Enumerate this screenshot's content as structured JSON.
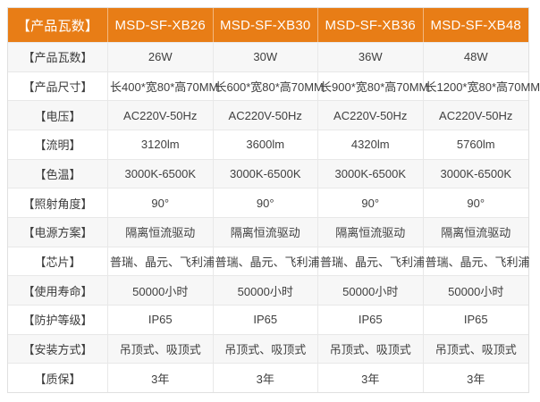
{
  "table": {
    "header": {
      "label": "【产品瓦数】",
      "columns": [
        "MSD-SF-XB26",
        "MSD-SF-XB30",
        "MSD-SF-XB36",
        "MSD-SF-XB48"
      ]
    },
    "rows": [
      {
        "label": "【产品瓦数】",
        "values": [
          "26W",
          "30W",
          "36W",
          "48W"
        ]
      },
      {
        "label": "【产品尺寸】",
        "values": [
          "长400*宽80*高70MM",
          "长600*宽80*高70MM",
          "长900*宽80*高70MM",
          "长1200*宽80*高70MM"
        ]
      },
      {
        "label": "【电压】",
        "values": [
          "AC220V-50Hz",
          "AC220V-50Hz",
          "AC220V-50Hz",
          "AC220V-50Hz"
        ]
      },
      {
        "label": "【流明】",
        "values": [
          "3120lm",
          "3600lm",
          "4320lm",
          "5760lm"
        ]
      },
      {
        "label": "【色温】",
        "values": [
          "3000K-6500K",
          "3000K-6500K",
          "3000K-6500K",
          "3000K-6500K"
        ]
      },
      {
        "label": "【照射角度】",
        "values": [
          "90°",
          "90°",
          "90°",
          "90°"
        ]
      },
      {
        "label": "【电源方案】",
        "values": [
          "隔离恒流驱动",
          "隔离恒流驱动",
          "隔离恒流驱动",
          "隔离恒流驱动"
        ]
      },
      {
        "label": "【芯片】",
        "values": [
          "普瑞、晶元、飞利浦",
          "普瑞、晶元、飞利浦",
          "普瑞、晶元、飞利浦",
          "普瑞、晶元、飞利浦"
        ]
      },
      {
        "label": "【使用寿命】",
        "values": [
          "50000小时",
          "50000小时",
          "50000小时",
          "50000小时"
        ]
      },
      {
        "label": "【防护等级】",
        "values": [
          "IP65",
          "IP65",
          "IP65",
          "IP65"
        ]
      },
      {
        "label": "【安装方式】",
        "values": [
          "吊顶式、吸顶式",
          "吊顶式、吸顶式",
          "吊顶式、吸顶式",
          "吊顶式、吸顶式"
        ]
      },
      {
        "label": "【质保】",
        "values": [
          "3年",
          "3年",
          "3年",
          "3年"
        ]
      }
    ],
    "colors": {
      "header_bg": "#e87d16",
      "header_text": "#ffffff",
      "row_alt_bg": "#f7f7f7",
      "row_bg": "#ffffff",
      "border": "#e8e8e8",
      "body_text": "#404040"
    }
  },
  "chart_data": {
    "type": "table",
    "title": "",
    "columns": [
      "【产品瓦数】",
      "MSD-SF-XB26",
      "MSD-SF-XB30",
      "MSD-SF-XB36",
      "MSD-SF-XB48"
    ],
    "rows": [
      [
        "【产品瓦数】",
        "26W",
        "30W",
        "36W",
        "48W"
      ],
      [
        "【产品尺寸】",
        "长400*宽80*高70MM",
        "长600*宽80*高70MM",
        "长900*宽80*高70MM",
        "长1200*宽80*高70MM"
      ],
      [
        "【电压】",
        "AC220V-50Hz",
        "AC220V-50Hz",
        "AC220V-50Hz",
        "AC220V-50Hz"
      ],
      [
        "【流明】",
        "3120lm",
        "3600lm",
        "4320lm",
        "5760lm"
      ],
      [
        "【色温】",
        "3000K-6500K",
        "3000K-6500K",
        "3000K-6500K",
        "3000K-6500K"
      ],
      [
        "【照射角度】",
        "90°",
        "90°",
        "90°",
        "90°"
      ],
      [
        "【电源方案】",
        "隔离恒流驱动",
        "隔离恒流驱动",
        "隔离恒流驱动",
        "隔离恒流驱动"
      ],
      [
        "【芯片】",
        "普瑞、晶元、飞利浦",
        "普瑞、晶元、飞利浦",
        "普瑞、晶元、飞利浦",
        "普瑞、晶元、飞利浦"
      ],
      [
        "【使用寿命】",
        "50000小时",
        "50000小时",
        "50000小时",
        "50000小时"
      ],
      [
        "【防护等级】",
        "IP65",
        "IP65",
        "IP65",
        "IP65"
      ],
      [
        "【安装方式】",
        "吊顶式、吸顶式",
        "吊顶式、吸顶式",
        "吊顶式、吸顶式",
        "吊顶式、吸顶式"
      ],
      [
        "【质保】",
        "3年",
        "3年",
        "3年",
        "3年"
      ]
    ]
  }
}
